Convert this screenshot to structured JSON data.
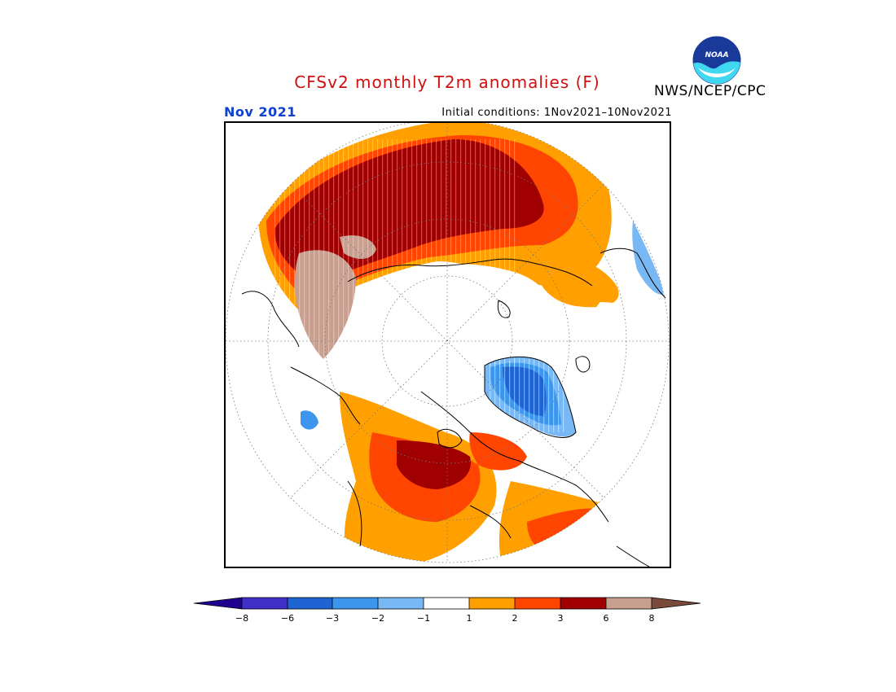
{
  "header": {
    "title": "CFSv2 monthly T2m anomalies (F)",
    "valid_month": "Nov 2021",
    "initial_conditions": "Initial conditions: 1Nov2021–10Nov2021",
    "agency": "NWS/NCEP/CPC",
    "logo_text": "NOAA"
  },
  "legend": {
    "colors": {
      "lt_-8": "#200090",
      "-8_-6": "#4030c8",
      "-6_-3": "#1e64d2",
      "-3_-2": "#3c96ee",
      "-2_-1": "#78b9f5",
      "-1_1": "#ffffff",
      "1_2": "#ffa000",
      "2_3": "#ff4500",
      "3_6": "#a00000",
      "6_8": "#c8a090",
      "gt_8": "#7a4a3a"
    },
    "tick_labels": [
      "−8",
      "−6",
      "−3",
      "−2",
      "−1",
      "1",
      "2",
      "3",
      "6",
      "8"
    ]
  }
}
